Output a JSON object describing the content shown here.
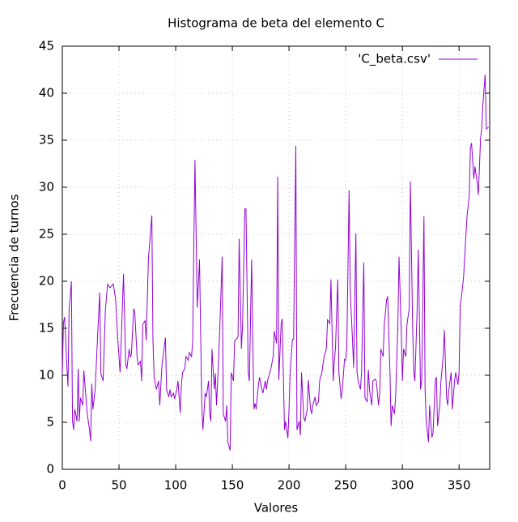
{
  "chart_data": {
    "type": "line",
    "title": "Histograma de beta del elemento C",
    "x_label": "Valores",
    "y_label": "Frecuencia de turnos",
    "xlim": [
      0,
      377
    ],
    "ylim": [
      0,
      45
    ],
    "xticks": [
      0,
      50,
      100,
      150,
      200,
      250,
      300,
      350
    ],
    "yticks": [
      0,
      5,
      10,
      15,
      20,
      25,
      30,
      35,
      40,
      45
    ],
    "grid": true,
    "legend": "top-right",
    "x": [
      0,
      1,
      2,
      4,
      5,
      6,
      8,
      9,
      10,
      11,
      13,
      14,
      15,
      16,
      18,
      19,
      22,
      24,
      25,
      26,
      27,
      29,
      31,
      33,
      34,
      36,
      38,
      40,
      42,
      45,
      47,
      49,
      51,
      52,
      54,
      56,
      57,
      59,
      60,
      61,
      63,
      64,
      66,
      67,
      69,
      70,
      71,
      73,
      74,
      76,
      79,
      80,
      81,
      83,
      85,
      86,
      88,
      89,
      91,
      92,
      94,
      95,
      96,
      98,
      99,
      101,
      102,
      104,
      105,
      106,
      108,
      109,
      111,
      112,
      114,
      115,
      116,
      117,
      119,
      120,
      121,
      123,
      124,
      126,
      127,
      129,
      130,
      131,
      132,
      134,
      135,
      136,
      138,
      139,
      141,
      142,
      144,
      145,
      146,
      148,
      149,
      151,
      152,
      154,
      155,
      156,
      158,
      159,
      161,
      162,
      164,
      165,
      167,
      169,
      170,
      171,
      173,
      174,
      176,
      177,
      179,
      180,
      181,
      183,
      184,
      186,
      187,
      189,
      190,
      191,
      193,
      194,
      196,
      197,
      199,
      200,
      201,
      203,
      204,
      206,
      207,
      209,
      210,
      211,
      213,
      214,
      216,
      217,
      219,
      220,
      221,
      223,
      224,
      226,
      227,
      229,
      230,
      231,
      233,
      234,
      236,
      237,
      239,
      240,
      241,
      243,
      244,
      246,
      247,
      249,
      250,
      251,
      253,
      254,
      256,
      257,
      259,
      260,
      261,
      263,
      264,
      266,
      267,
      269,
      270,
      271,
      273,
      274,
      276,
      277,
      279,
      280,
      281,
      283,
      284,
      286,
      287,
      289,
      290,
      291,
      293,
      294,
      296,
      297,
      299,
      300,
      301,
      303,
      304,
      306,
      307,
      309,
      310,
      311,
      313,
      314,
      316,
      317,
      319,
      320,
      321,
      323,
      324,
      326,
      327,
      329,
      330,
      331,
      333,
      334,
      336,
      337,
      339,
      340,
      341,
      343,
      344,
      346,
      347,
      349,
      350,
      351,
      353,
      354,
      356,
      357,
      359,
      360,
      361,
      363,
      364,
      366,
      367,
      369,
      370,
      371,
      373,
      374,
      376
    ],
    "series": [
      {
        "name": "'C_beta.csv'",
        "color": "#9400d3",
        "values": [
          10.1,
          15.6,
          16.2,
          11,
          8.8,
          17,
          20,
          5.1,
          4.2,
          6.4,
          5.1,
          10.7,
          5.1,
          7.6,
          6.8,
          10.5,
          5.9,
          4.2,
          3.0,
          9.1,
          6.4,
          8.5,
          13.8,
          18.8,
          10.2,
          9.4,
          17,
          19.7,
          19.3,
          19.7,
          18.1,
          13.7,
          10.3,
          13.7,
          20.8,
          11.1,
          10.7,
          12.8,
          11.9,
          12.3,
          17.1,
          16.6,
          11.9,
          11.1,
          11.5,
          9.4,
          15.4,
          15.8,
          13.7,
          22.4,
          27.0,
          13.7,
          9.8,
          8.5,
          9.4,
          6.8,
          11.2,
          12.1,
          14.0,
          8.5,
          7.7,
          8.5,
          7.7,
          8.1,
          7.5,
          8.5,
          9.4,
          6.0,
          9.0,
          10.3,
          10.7,
          12.0,
          11.6,
          12.4,
          12.0,
          13.7,
          24.0,
          32.9,
          17.2,
          19.7,
          22.3,
          6.8,
          4.2,
          8.1,
          7.7,
          9.4,
          5.9,
          5.1,
          12.8,
          8.5,
          10.2,
          6.8,
          12.0,
          15.4,
          22.6,
          5.9,
          5.1,
          6.8,
          2.9,
          2.0,
          10.3,
          9.4,
          13.7,
          13.9,
          14.1,
          24.5,
          12.8,
          15.4,
          27.7,
          27.7,
          10.3,
          9.4,
          22.3,
          6.4,
          7.0,
          6.4,
          9.0,
          9.8,
          8.5,
          8.1,
          9.4,
          8.5,
          9.4,
          10.3,
          10.7,
          12.0,
          14.7,
          13.4,
          31.1,
          9.5,
          15.4,
          16.0,
          4.2,
          5.1,
          3.3,
          6.4,
          10.3,
          13.8,
          13.8,
          34.4,
          4.2,
          5.1,
          3.6,
          10.3,
          5.5,
          5.1,
          6.3,
          9.5,
          6.4,
          5.9,
          6.8,
          7.7,
          6.8,
          7.2,
          9.4,
          10.3,
          11.2,
          12.0,
          12.9,
          15.9,
          15.5,
          20.2,
          9.4,
          11.6,
          12.9,
          20.2,
          10.3,
          7.5,
          8.5,
          11.7,
          11.6,
          12.9,
          29.7,
          19.0,
          13.8,
          10.8,
          25.1,
          10.3,
          9.4,
          8.5,
          10.3,
          22.0,
          7.6,
          7.2,
          10.6,
          8.5,
          6.8,
          9.4,
          9.6,
          9.4,
          6.8,
          8.1,
          12.8,
          12.0,
          15.4,
          18.0,
          18.4,
          10.3,
          4.6,
          6.8,
          5.9,
          7.7,
          15.4,
          22.6,
          14.5,
          9.4,
          12.8,
          12.0,
          15.4,
          17.1,
          30.6,
          15.4,
          10.3,
          9.4,
          17.1,
          23.4,
          8.5,
          9.4,
          26.9,
          8.5,
          5.1,
          2.9,
          6.8,
          3.4,
          3.8,
          9.4,
          9.8,
          4.6,
          6.8,
          9.4,
          12.0,
          14.8,
          7.6,
          6.8,
          8.5,
          10.3,
          6.4,
          9.4,
          10.3,
          9.0,
          10.3,
          17.3,
          19.3,
          20.5,
          24.8,
          26.9,
          29.1,
          34.2,
          34.7,
          30.9,
          32.2,
          30.5,
          29.2,
          35.3,
          36.2,
          38.8,
          42.0,
          36.2,
          36.4
        ]
      }
    ]
  }
}
